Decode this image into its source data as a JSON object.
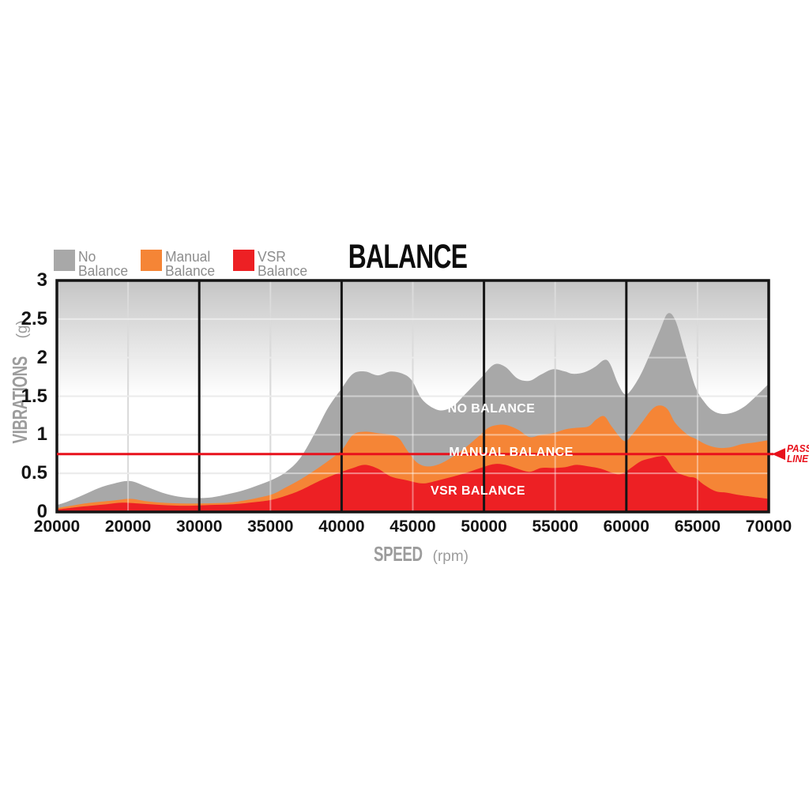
{
  "title": "BALANCE",
  "legend": [
    {
      "label_line1": "No",
      "label_line2": "Balance",
      "color": "#a8a8a8"
    },
    {
      "label_line1": "Manual",
      "label_line2": "Balance",
      "color": "#f58536"
    },
    {
      "label_line1": "VSR",
      "label_line2": "Balance",
      "color": "#ed2024"
    }
  ],
  "pass_line": {
    "label_line1": "PASS",
    "label_line2": "LINE",
    "value": 0.75,
    "color": "#e8111c"
  },
  "chart_data": {
    "type": "area",
    "title": "BALANCE",
    "xlabel": "SPEED",
    "xlabel_unit": "(rpm)",
    "ylabel": "VIBRATIONS",
    "ylabel_unit": "(g)",
    "x_tick_labels": [
      "20000",
      "20000",
      "30000",
      "35000",
      "40000",
      "45000",
      "50000",
      "55000",
      "60000",
      "65000",
      "70000"
    ],
    "y_tick_labels": [
      "0",
      "0.5",
      "1",
      "1.5",
      "2",
      "2.5",
      "3"
    ],
    "y_tick_values": [
      0,
      0.5,
      1,
      1.5,
      2,
      2.5,
      3
    ],
    "ylim": [
      0,
      3
    ],
    "grid": "on",
    "legend_position": "top-left",
    "black_gridline_ticks": [
      2,
      4,
      6,
      8
    ],
    "gray_gridline_ticks": [
      1,
      3,
      5,
      7,
      9
    ],
    "pass_line_value": 0.75,
    "series": [
      {
        "name": "NO BALANCE",
        "color": "#a8a8a8",
        "x_units": "tick_index",
        "y_units": "g",
        "points": [
          [
            0,
            0.09
          ],
          [
            0.14,
            0.13
          ],
          [
            0.37,
            0.22
          ],
          [
            0.59,
            0.31
          ],
          [
            0.81,
            0.37
          ],
          [
            1.03,
            0.4
          ],
          [
            1.25,
            0.33
          ],
          [
            1.48,
            0.25
          ],
          [
            1.7,
            0.2
          ],
          [
            1.95,
            0.18
          ],
          [
            2.18,
            0.19
          ],
          [
            2.4,
            0.23
          ],
          [
            2.62,
            0.28
          ],
          [
            2.81,
            0.34
          ],
          [
            3.03,
            0.42
          ],
          [
            3.22,
            0.52
          ],
          [
            3.42,
            0.7
          ],
          [
            3.64,
            1.05
          ],
          [
            3.81,
            1.35
          ],
          [
            4.0,
            1.6
          ],
          [
            4.16,
            1.79
          ],
          [
            4.33,
            1.82
          ],
          [
            4.51,
            1.77
          ],
          [
            4.69,
            1.82
          ],
          [
            4.86,
            1.79
          ],
          [
            4.99,
            1.7
          ],
          [
            5.14,
            1.45
          ],
          [
            5.36,
            1.32
          ],
          [
            5.55,
            1.36
          ],
          [
            5.73,
            1.52
          ],
          [
            5.95,
            1.73
          ],
          [
            6.14,
            1.91
          ],
          [
            6.3,
            1.88
          ],
          [
            6.47,
            1.73
          ],
          [
            6.64,
            1.7
          ],
          [
            6.8,
            1.78
          ],
          [
            6.97,
            1.85
          ],
          [
            7.14,
            1.82
          ],
          [
            7.25,
            1.79
          ],
          [
            7.41,
            1.81
          ],
          [
            7.56,
            1.88
          ],
          [
            7.69,
            1.97
          ],
          [
            7.77,
            1.92
          ],
          [
            7.88,
            1.67
          ],
          [
            7.97,
            1.53
          ],
          [
            8.05,
            1.56
          ],
          [
            8.19,
            1.76
          ],
          [
            8.32,
            2.02
          ],
          [
            8.47,
            2.35
          ],
          [
            8.58,
            2.57
          ],
          [
            8.69,
            2.48
          ],
          [
            8.83,
            2.05
          ],
          [
            8.97,
            1.62
          ],
          [
            9.1,
            1.42
          ],
          [
            9.22,
            1.31
          ],
          [
            9.35,
            1.27
          ],
          [
            9.5,
            1.29
          ],
          [
            9.65,
            1.36
          ],
          [
            9.8,
            1.48
          ],
          [
            10,
            1.66
          ]
        ]
      },
      {
        "name": "MANUAL BALANCE",
        "color": "#f58536",
        "x_units": "tick_index",
        "y_units": "g",
        "points": [
          [
            0,
            0.05
          ],
          [
            0.26,
            0.09
          ],
          [
            0.48,
            0.12
          ],
          [
            0.81,
            0.15
          ],
          [
            1.03,
            0.17
          ],
          [
            1.25,
            0.14
          ],
          [
            1.48,
            0.12
          ],
          [
            1.75,
            0.11
          ],
          [
            2.03,
            0.11
          ],
          [
            2.4,
            0.12
          ],
          [
            2.64,
            0.15
          ],
          [
            2.81,
            0.18
          ],
          [
            3.03,
            0.23
          ],
          [
            3.22,
            0.32
          ],
          [
            3.42,
            0.42
          ],
          [
            3.64,
            0.55
          ],
          [
            3.81,
            0.66
          ],
          [
            4.0,
            0.8
          ],
          [
            4.16,
            1.0
          ],
          [
            4.33,
            1.04
          ],
          [
            4.51,
            1.02
          ],
          [
            4.69,
            1.0
          ],
          [
            4.81,
            0.95
          ],
          [
            4.92,
            0.8
          ],
          [
            5.06,
            0.64
          ],
          [
            5.22,
            0.59
          ],
          [
            5.42,
            0.64
          ],
          [
            5.69,
            0.8
          ],
          [
            5.95,
            1.0
          ],
          [
            6.08,
            1.1
          ],
          [
            6.28,
            1.13
          ],
          [
            6.47,
            1.07
          ],
          [
            6.64,
            0.97
          ],
          [
            6.8,
            1.0
          ],
          [
            6.97,
            1.02
          ],
          [
            7.14,
            1.07
          ],
          [
            7.3,
            1.09
          ],
          [
            7.47,
            1.11
          ],
          [
            7.58,
            1.2
          ],
          [
            7.69,
            1.24
          ],
          [
            7.8,
            1.1
          ],
          [
            7.97,
            0.92
          ],
          [
            8.08,
            1.0
          ],
          [
            8.21,
            1.15
          ],
          [
            8.36,
            1.33
          ],
          [
            8.47,
            1.38
          ],
          [
            8.58,
            1.33
          ],
          [
            8.69,
            1.15
          ],
          [
            8.86,
            1.0
          ],
          [
            8.97,
            0.95
          ],
          [
            9.13,
            0.87
          ],
          [
            9.3,
            0.83
          ],
          [
            9.47,
            0.84
          ],
          [
            9.63,
            0.88
          ],
          [
            9.8,
            0.9
          ],
          [
            10,
            0.93
          ]
        ]
      },
      {
        "name": "VSR BALANCE",
        "color": "#ed2024",
        "x_units": "tick_index",
        "y_units": "g",
        "points": [
          [
            0,
            0.03
          ],
          [
            0.26,
            0.06
          ],
          [
            0.48,
            0.08
          ],
          [
            0.7,
            0.1
          ],
          [
            0.92,
            0.12
          ],
          [
            1.14,
            0.11
          ],
          [
            1.48,
            0.09
          ],
          [
            1.81,
            0.08
          ],
          [
            2.14,
            0.09
          ],
          [
            2.48,
            0.1
          ],
          [
            2.81,
            0.13
          ],
          [
            3.03,
            0.16
          ],
          [
            3.25,
            0.22
          ],
          [
            3.42,
            0.28
          ],
          [
            3.64,
            0.38
          ],
          [
            3.81,
            0.45
          ],
          [
            4.0,
            0.52
          ],
          [
            4.16,
            0.57
          ],
          [
            4.33,
            0.61
          ],
          [
            4.51,
            0.56
          ],
          [
            4.69,
            0.46
          ],
          [
            4.92,
            0.41
          ],
          [
            5.14,
            0.37
          ],
          [
            5.36,
            0.41
          ],
          [
            5.69,
            0.49
          ],
          [
            5.95,
            0.57
          ],
          [
            6.14,
            0.62
          ],
          [
            6.3,
            0.61
          ],
          [
            6.47,
            0.56
          ],
          [
            6.64,
            0.52
          ],
          [
            6.8,
            0.57
          ],
          [
            6.97,
            0.57
          ],
          [
            7.14,
            0.58
          ],
          [
            7.3,
            0.61
          ],
          [
            7.47,
            0.59
          ],
          [
            7.64,
            0.56
          ],
          [
            7.86,
            0.49
          ],
          [
            7.97,
            0.51
          ],
          [
            8.08,
            0.58
          ],
          [
            8.21,
            0.66
          ],
          [
            8.36,
            0.7
          ],
          [
            8.47,
            0.72
          ],
          [
            8.55,
            0.71
          ],
          [
            8.69,
            0.53
          ],
          [
            8.86,
            0.46
          ],
          [
            8.97,
            0.44
          ],
          [
            9.08,
            0.36
          ],
          [
            9.25,
            0.27
          ],
          [
            9.41,
            0.25
          ],
          [
            9.58,
            0.22
          ],
          [
            9.74,
            0.2
          ],
          [
            10,
            0.17
          ]
        ]
      }
    ],
    "series_labels": [
      {
        "text": "NO BALANCE"
      },
      {
        "text": "MANUAL BALANCE"
      },
      {
        "text": "VSR BALANCE"
      }
    ]
  }
}
